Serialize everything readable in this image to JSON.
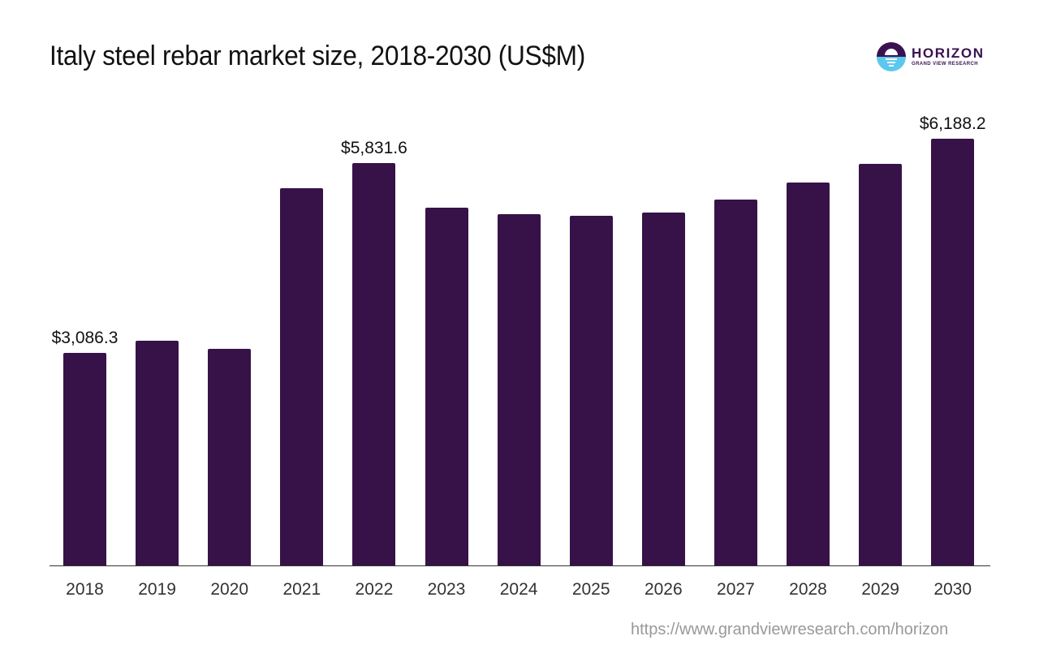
{
  "header": {
    "title": "Italy steel rebar market size, 2018-2030 (US$M)"
  },
  "logo": {
    "name": "HORIZON",
    "subtitle": "GRAND VIEW RESEARCH",
    "icon": "horizon-sun-logo-icon",
    "colors": {
      "dark": "#3a1250",
      "light": "#5cc8ee"
    }
  },
  "footer": {
    "source_url": "https://www.grandviewresearch.com/horizon"
  },
  "colors": {
    "bar": "#371249",
    "axis": "#333333",
    "source_text": "#999999"
  },
  "chart_data": {
    "type": "bar",
    "title": "Italy steel rebar market size, 2018-2030 (US$M)",
    "xlabel": "",
    "ylabel": "US$M",
    "categories": [
      "2018",
      "2019",
      "2020",
      "2021",
      "2022",
      "2023",
      "2024",
      "2025",
      "2026",
      "2027",
      "2028",
      "2029",
      "2030"
    ],
    "values": [
      3086.3,
      3262,
      3145,
      5468,
      5831.6,
      5187,
      5093,
      5069,
      5116,
      5304,
      5550,
      5820,
      6188.2
    ],
    "data_labels": [
      {
        "index": 0,
        "text": "$3,086.3"
      },
      {
        "index": 4,
        "text": "$5,831.6"
      },
      {
        "index": 12,
        "text": "$6,188.2"
      }
    ],
    "ylim": [
      0,
      6800
    ],
    "grid": false,
    "legend": "none",
    "bar_color": "#371249"
  }
}
